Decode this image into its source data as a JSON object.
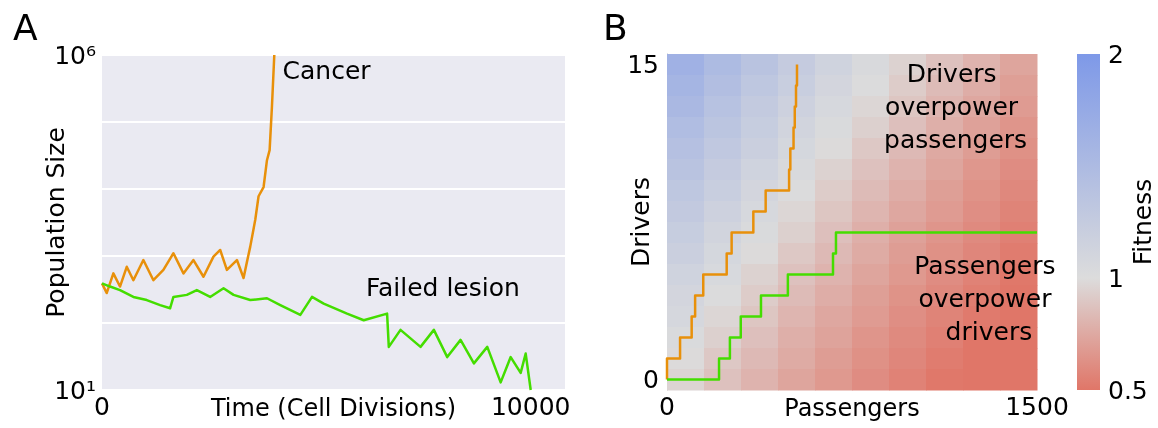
{
  "chart_data": [
    {
      "type": "line",
      "title": "A",
      "xlabel": "Time (Cell Divisions)",
      "ylabel": "Population Size",
      "xlim": [
        0,
        10800
      ],
      "xticks": [
        0,
        10000
      ],
      "ylim": [
        10,
        1000000
      ],
      "yticks": [
        {
          "value": 10,
          "label": "10¹"
        },
        {
          "value": 100,
          "label": null
        },
        {
          "value": 1000,
          "label": null
        },
        {
          "value": 10000,
          "label": null
        },
        {
          "value": 100000,
          "label": null
        },
        {
          "value": 1000000,
          "label": "10⁶"
        }
      ],
      "log": "y",
      "grid": "y",
      "series": [
        {
          "name": "Cancer",
          "color": "#e8900a",
          "x": [
            0,
            109,
            265,
            420,
            577,
            732,
            965,
            1199,
            1432,
            1666,
            1900,
            2133,
            2367,
            2600,
            2757,
            2913,
            3147,
            3302,
            3380,
            3458,
            3575,
            3652,
            3769,
            3848,
            3910,
            3964,
            4019
          ],
          "values": [
            390,
            280,
            550,
            350,
            690,
            435,
            870,
            435,
            620,
            1100,
            550,
            870,
            490,
            980,
            1230,
            620,
            870,
            470,
            810,
            1380,
            3470,
            7800,
            10700,
            26900,
            38000,
            170000,
            1000000
          ]
        },
        {
          "name": "Failed lesion",
          "color": "#44dd00",
          "x": [
            0,
            187,
            420,
            732,
            1044,
            1355,
            1589,
            1666,
            1979,
            2212,
            2523,
            2835,
            3069,
            3458,
            3848,
            4159,
            4626,
            4899,
            5171,
            5716,
            6105,
            6650,
            6690,
            6963,
            7430,
            7741,
            8053,
            8364,
            8675,
            8987,
            9299,
            9533,
            9766,
            9883,
            10000
          ],
          "values": [
            390,
            350,
            310,
            245,
            220,
            185,
            166,
            245,
            263,
            310,
            245,
            330,
            263,
            220,
            234,
            185,
            132,
            245,
            195,
            138,
            110,
            138,
            44,
            79,
            44,
            79,
            31,
            56,
            25,
            44,
            13,
            31,
            18,
            35,
            10
          ]
        }
      ]
    },
    {
      "type": "heatmap",
      "title": "B",
      "xlabel": "Passengers",
      "ylabel": "Drivers",
      "clabel": "Fitness",
      "xlim": [
        0,
        1500
      ],
      "xticks": [
        0,
        1500
      ],
      "x": [
        75,
        225,
        375,
        525,
        675,
        825,
        975,
        1125,
        1275,
        1425
      ],
      "ylim": [
        -0.5,
        15.5
      ],
      "yticks": [
        0,
        15
      ],
      "cells": [
        [
          1.64,
          1.5,
          1.37,
          1.25,
          1.14,
          1.04,
          0.95,
          0.87,
          0.8,
          0.73
        ],
        [
          1.58,
          1.45,
          1.32,
          1.21,
          1.1,
          1.01,
          0.92,
          0.84,
          0.77,
          0.7
        ],
        [
          1.53,
          1.39,
          1.27,
          1.16,
          1.06,
          0.97,
          0.89,
          0.81,
          0.74,
          0.68
        ],
        [
          1.47,
          1.35,
          1.23,
          1.12,
          1.03,
          0.94,
          0.86,
          0.78,
          0.71,
          0.65
        ],
        [
          1.42,
          1.3,
          1.19,
          1.08,
          0.99,
          0.9,
          0.83,
          0.75,
          0.69,
          0.63
        ],
        [
          1.37,
          1.25,
          1.14,
          1.04,
          0.95,
          0.87,
          0.8,
          0.73,
          0.66,
          0.61
        ],
        [
          1.32,
          1.21,
          1.1,
          1.01,
          0.92,
          0.84,
          0.77,
          0.7,
          0.64,
          0.59
        ],
        [
          1.28,
          1.16,
          1.06,
          0.97,
          0.89,
          0.81,
          0.74,
          0.68,
          0.62,
          0.57
        ],
        [
          1.23,
          1.12,
          1.03,
          0.94,
          0.86,
          0.78,
          0.71,
          0.65,
          0.6,
          0.55
        ],
        [
          1.19,
          1.08,
          0.99,
          0.9,
          0.83,
          0.76,
          0.69,
          0.63,
          0.58,
          0.53
        ],
        [
          1.14,
          1.05,
          0.95,
          0.87,
          0.8,
          0.73,
          0.67,
          0.61,
          0.56,
          0.51
        ],
        [
          1.1,
          1.01,
          0.92,
          0.84,
          0.77,
          0.7,
          0.64,
          0.59,
          0.54,
          0.5
        ],
        [
          1.07,
          0.97,
          0.89,
          0.81,
          0.74,
          0.68,
          0.62,
          0.57,
          0.52,
          0.5
        ],
        [
          1.03,
          0.94,
          0.86,
          0.78,
          0.72,
          0.65,
          0.6,
          0.55,
          0.5,
          0.5
        ],
        [
          0.99,
          0.9,
          0.83,
          0.76,
          0.69,
          0.63,
          0.58,
          0.53,
          0.5,
          0.5
        ],
        [
          0.96,
          0.87,
          0.8,
          0.73,
          0.67,
          0.61,
          0.56,
          0.51,
          0.5,
          0.5
        ]
      ],
      "clim": [
        0.5,
        2
      ],
      "cticks": [
        0.5,
        1,
        2
      ],
      "colors": [
        "#e07668",
        "#dcdcdc",
        "#7e99e8"
      ],
      "series": [
        {
          "type": "step",
          "color": "#e8900a",
          "x": [
            0,
            0,
            53,
            100,
            114,
            147,
            242,
            262,
            350,
            400,
            495,
            500,
            513,
            518,
            523,
            527
          ],
          "values": [
            0,
            1,
            2,
            3,
            4,
            5,
            6,
            7,
            8,
            9,
            10,
            11,
            12,
            13,
            14,
            15
          ]
        },
        {
          "type": "step",
          "color": "#44dd00",
          "x": [
            0,
            211,
            255,
            299,
            381,
            490,
            673,
            685,
            1500
          ],
          "values": [
            0,
            1,
            2,
            3,
            4,
            5,
            6,
            7,
            7
          ]
        }
      ],
      "annotations": [
        "Drivers overpower passengers",
        "Passengers overpower drivers"
      ]
    }
  ]
}
